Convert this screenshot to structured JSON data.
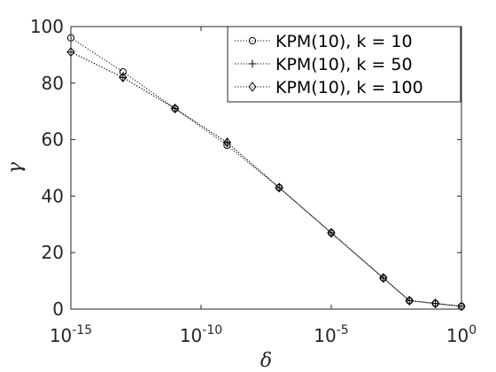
{
  "chart_data": {
    "type": "line",
    "title": "",
    "xlabel": "δ",
    "ylabel": "γ",
    "x_scale": "log",
    "xlim": [
      1e-15,
      1
    ],
    "ylim": [
      0,
      100
    ],
    "x_ticks": [
      1e-15,
      1e-10,
      1e-05,
      1
    ],
    "x_tick_labels": [
      {
        "base": "10",
        "exp": "-15"
      },
      {
        "base": "10",
        "exp": "-10"
      },
      {
        "base": "10",
        "exp": "-5"
      },
      {
        "base": "10",
        "exp": "0"
      }
    ],
    "y_ticks": [
      0,
      20,
      40,
      60,
      80,
      100
    ],
    "y_tick_labels": [
      "0",
      "20",
      "40",
      "60",
      "80",
      "100"
    ],
    "grid": false,
    "legend_position": "top-right",
    "x": [
      1e-15,
      1e-13,
      1e-11,
      1e-09,
      1e-07,
      1e-05,
      0.001,
      0.01,
      0.1,
      1
    ],
    "series": [
      {
        "name": "KPM(10), k = 10",
        "marker": "circle",
        "values": [
          96,
          84,
          71,
          58,
          43,
          27,
          11,
          3,
          2,
          1
        ]
      },
      {
        "name": "KPM(10), k = 50",
        "marker": "plus",
        "values": [
          91,
          82,
          71,
          59,
          43,
          27,
          11,
          3,
          2,
          1
        ]
      },
      {
        "name": "KPM(10), k = 100",
        "marker": "diamond",
        "values": [
          91,
          82,
          71,
          59,
          43,
          27,
          11,
          3,
          2,
          1
        ]
      }
    ],
    "colors": {
      "line": "#000000",
      "axis": "#262626"
    }
  }
}
